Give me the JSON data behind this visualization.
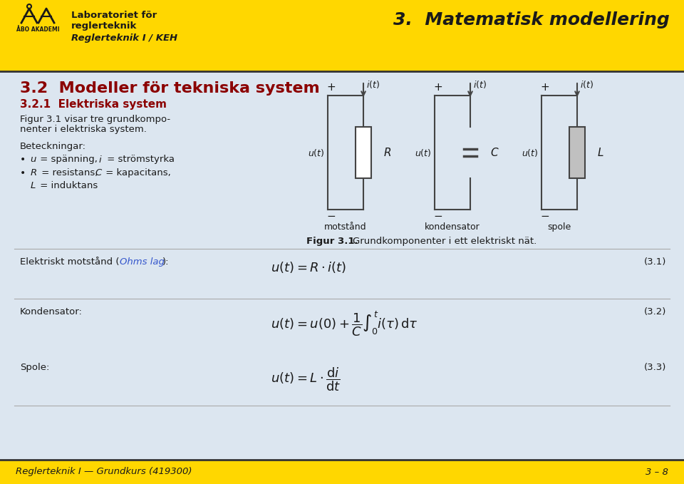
{
  "bg_color": "#dce6f0",
  "header_bg": "#FFD700",
  "header_text1_line1": "Laboratoriet för",
  "header_text1_line2": "reglerteknik",
  "header_text2": "Reglerteknik I / KEH",
  "header_title": "3.  Matematisk modellering",
  "section_title": "3.2  Modeller för tekniska system",
  "subsection_title": "3.2.1  Elektriska system",
  "section_color": "#8B0000",
  "subsection_color": "#8B0000",
  "body_text1_line1": "Figur 3.1 visar tre grundkompo-",
  "body_text1_line2": "nenter i elektriska system.",
  "body_text2": "Beteckningar:",
  "eq_label1a": "Elektriskt motstånd (",
  "eq_label1b": "Ohms lag",
  "eq_label1c": "):",
  "eq_label2": "Kondensator:",
  "eq_label3": "Spole:",
  "eq_num1": "(3.1)",
  "eq_num2": "(3.2)",
  "eq_num3": "(3.3)",
  "fig_caption": "Grundkomponenter i ett elektriskt nät.",
  "fig_label": "Figur 3.1.",
  "footer_left": "Reglerteknik I — Grundkurs (419300)",
  "footer_right": "3 – 8",
  "footer_bg": "#FFD700",
  "text_color": "#1a1a1a",
  "line_color": "#444444",
  "ohms_color": "#3355cc"
}
